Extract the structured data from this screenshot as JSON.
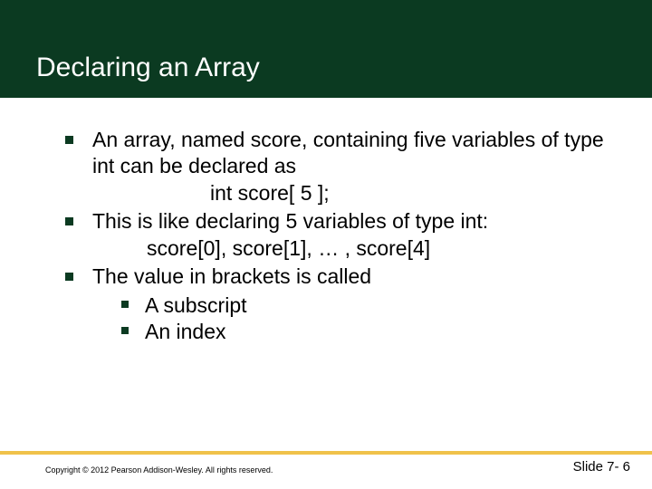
{
  "header": {
    "title": "Declaring an Array",
    "bg_color": "#0b3a21",
    "title_color": "#ffffff",
    "title_fontsize": 30
  },
  "content": {
    "text_color": "#000000",
    "fontsize": 23,
    "bullet_color": "#0b3a21",
    "items": [
      {
        "lines": [
          "An array, named score, containing five variables of type int can be declared as"
        ],
        "indent_line": "int score[ 5 ];"
      },
      {
        "lines": [
          "This is like declaring 5 variables of type int:"
        ],
        "indent_line2": "score[0], score[1], … , score[4]"
      },
      {
        "lines": [
          "The value in brackets is called"
        ],
        "sub": [
          "A subscript",
          "An index"
        ]
      }
    ]
  },
  "footer": {
    "rule_color": "#f0c24a",
    "copyright": "Copyright © 2012 Pearson Addison-Wesley. All rights reserved.",
    "slide_label": "Slide 7- 6"
  }
}
